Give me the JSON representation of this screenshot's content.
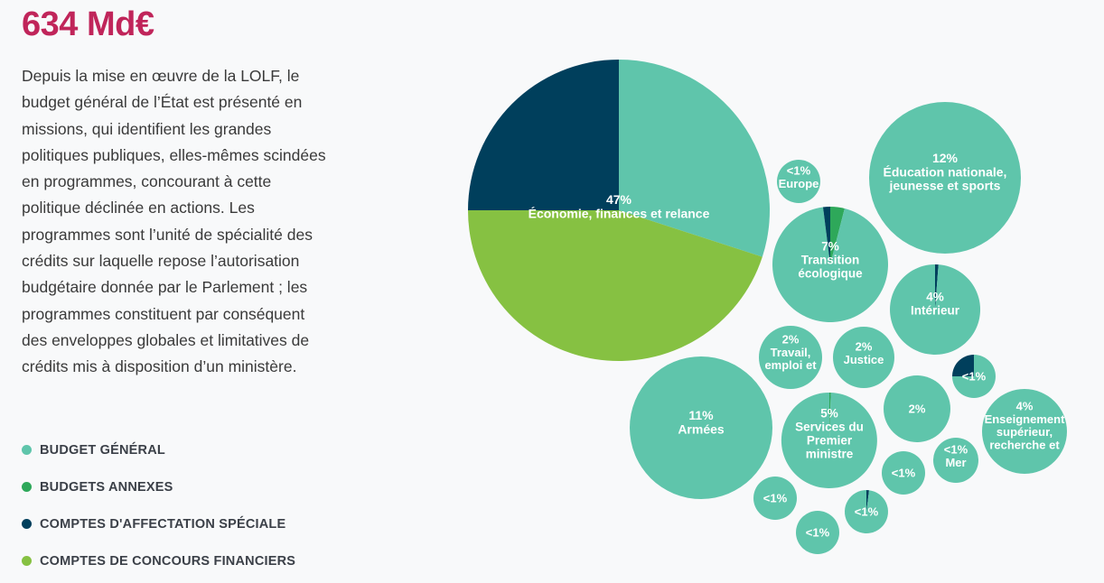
{
  "header": {
    "total": "634 Md€"
  },
  "intro": "Depuis la mise en œuvre de la LOLF, le budget général de l’État est présenté en missions, qui identifient les grandes politiques publiques, elles-mêmes scindées en programmes, concourant à cette politique déclinée en actions. Les programmes sont l’unité de spécialité des crédits sur laquelle repose l’autorisation budgétaire donnée par le Parlement ; les programmes constituent par conséquent des enveloppes globales et limitatives de crédits mis à disposition d’un ministère.",
  "colors": {
    "budget_general": "#5fc5ab",
    "budgets_annexes": "#2ea85a",
    "comptes_affectation_speciale": "#003f5c",
    "comptes_concours_financiers": "#86c142"
  },
  "legend": [
    {
      "label": "BUDGET GÉNÉRAL",
      "color": "#5fc5ab"
    },
    {
      "label": "BUDGETS ANNEXES",
      "color": "#2ea85a"
    },
    {
      "label": "COMPTES D'AFFECTATION SPÉCIALE",
      "color": "#003f5c"
    },
    {
      "label": "COMPTES DE CONCOURS FINANCIERS",
      "color": "#86c142"
    }
  ],
  "chart_data": {
    "type": "pie",
    "bubbles": [
      {
        "pct": "47%",
        "lines": [
          "Économie, finances et relance"
        ],
        "share": 47,
        "slices": [
          {
            "type": "budget_general",
            "frac": 0.3
          },
          {
            "type": "comptes_concours_financiers",
            "frac": 0.45
          },
          {
            "type": "comptes_affectation_speciale",
            "frac": 0.25
          }
        ]
      },
      {
        "pct": "12%",
        "lines": [
          "Éducation nationale,",
          "jeunesse et sports"
        ],
        "share": 12,
        "slices": [
          {
            "type": "budget_general",
            "frac": 1.0
          }
        ]
      },
      {
        "pct": "11%",
        "lines": [
          "Armées"
        ],
        "share": 11,
        "slices": [
          {
            "type": "budget_general",
            "frac": 1.0
          }
        ]
      },
      {
        "pct": "7%",
        "lines": [
          "Transition",
          "écologique"
        ],
        "share": 7,
        "slices": [
          {
            "type": "budgets_annexes",
            "frac": 0.04
          },
          {
            "type": "budget_general",
            "frac": 0.94
          },
          {
            "type": "comptes_affectation_speciale",
            "frac": 0.02
          }
        ]
      },
      {
        "pct": "5%",
        "lines": [
          "Services du",
          "Premier",
          "ministre"
        ],
        "share": 5,
        "slices": [
          {
            "type": "budgets_annexes",
            "frac": 0.005
          },
          {
            "type": "budget_general",
            "frac": 0.995
          }
        ]
      },
      {
        "pct": "4%",
        "lines": [
          "Intérieur"
        ],
        "share": 4,
        "slices": [
          {
            "type": "comptes_affectation_speciale",
            "frac": 0.012
          },
          {
            "type": "budget_general",
            "frac": 0.988
          }
        ]
      },
      {
        "pct": "4%",
        "lines": [
          "Enseignement",
          "supérieur,",
          "recherche et"
        ],
        "share": 4,
        "slices": [
          {
            "type": "budget_general",
            "frac": 1.0
          }
        ]
      },
      {
        "pct": "2%",
        "lines": [
          "Travail,",
          "emploi et"
        ],
        "share": 2,
        "slices": [
          {
            "type": "budget_general",
            "frac": 1.0
          }
        ]
      },
      {
        "pct": "2%",
        "lines": [
          "Justice"
        ],
        "share": 2,
        "slices": [
          {
            "type": "budget_general",
            "frac": 1.0
          }
        ]
      },
      {
        "pct": "2%",
        "lines": [],
        "share": 2,
        "slices": [
          {
            "type": "budget_general",
            "frac": 1.0
          }
        ]
      },
      {
        "pct": "<1%",
        "lines": [
          "Europe"
        ],
        "share": 0.5,
        "slices": [
          {
            "type": "budget_general",
            "frac": 1.0
          }
        ]
      },
      {
        "pct": "<1%",
        "lines": [],
        "share": 0.5,
        "slices": [
          {
            "type": "budget_general",
            "frac": 0.75
          },
          {
            "type": "comptes_affectation_speciale",
            "frac": 0.25
          }
        ]
      },
      {
        "pct": "<1%",
        "lines": [
          "Mer"
        ],
        "share": 0.5,
        "slices": [
          {
            "type": "budget_general",
            "frac": 1.0
          }
        ]
      },
      {
        "pct": "<1%",
        "lines": [],
        "share": 0.5,
        "slices": [
          {
            "type": "budget_general",
            "frac": 1.0
          }
        ]
      },
      {
        "pct": "<1%",
        "lines": [],
        "share": 0.5,
        "slices": [
          {
            "type": "budget_general",
            "frac": 1.0
          }
        ]
      },
      {
        "pct": "<1%",
        "lines": [],
        "share": 0.5,
        "slices": [
          {
            "type": "comptes_affectation_speciale",
            "frac": 0.02
          },
          {
            "type": "budget_general",
            "frac": 0.98
          }
        ]
      },
      {
        "pct": "<1%",
        "lines": [],
        "share": 0.5,
        "slices": [
          {
            "type": "budget_general",
            "frac": 1.0
          }
        ]
      }
    ]
  }
}
